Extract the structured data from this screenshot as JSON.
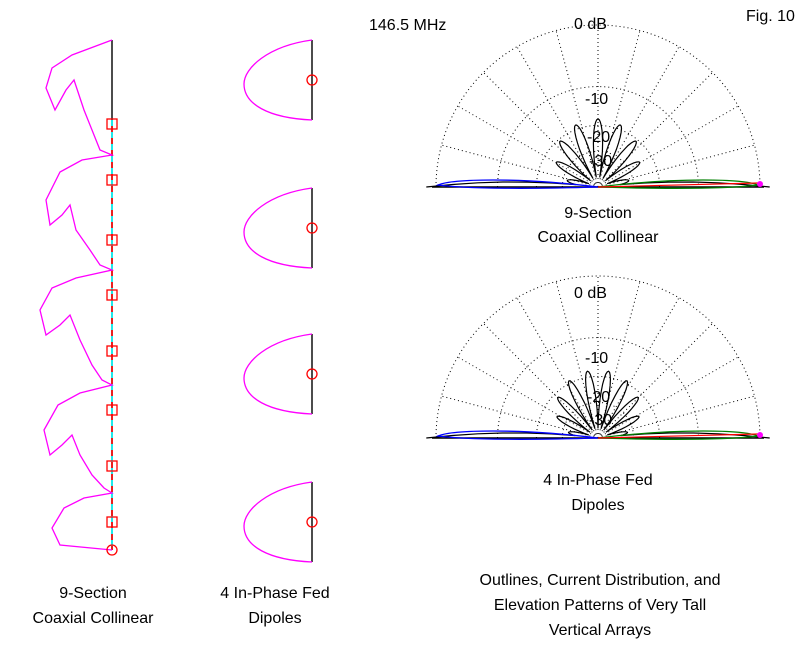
{
  "header": {
    "frequency": "146.5 MHz",
    "figure_label": "Fig. 10"
  },
  "left_diagrams": [
    {
      "caption_line1": "9-Section",
      "caption_line2": "Coaxial Collinear"
    },
    {
      "caption_line1": "4 In-Phase Fed",
      "caption_line2": "Dipoles"
    }
  ],
  "patterns": [
    {
      "ring_labels": [
        "0 dB",
        "-10",
        "-20",
        "-30"
      ],
      "caption_line1": "9-Section",
      "caption_line2": "Coaxial Collinear"
    },
    {
      "ring_labels": [
        "0 dB",
        "-10",
        "-20",
        "-30"
      ],
      "caption_line1": "4 In-Phase Fed",
      "caption_line2": "Dipoles"
    }
  ],
  "caption": {
    "line1": "Outlines, Current Distribution, and",
    "line2": "Elevation Patterns of Very Tall",
    "line3": "Vertical Arrays"
  },
  "colors": {
    "current": "#ff00ff",
    "source": "#ff0000",
    "coax": "#00ffff",
    "grid": "#000000",
    "pattern": "#000000",
    "trace_blue": "#0000ff",
    "trace_red": "#ff0000",
    "trace_green": "#008000"
  }
}
